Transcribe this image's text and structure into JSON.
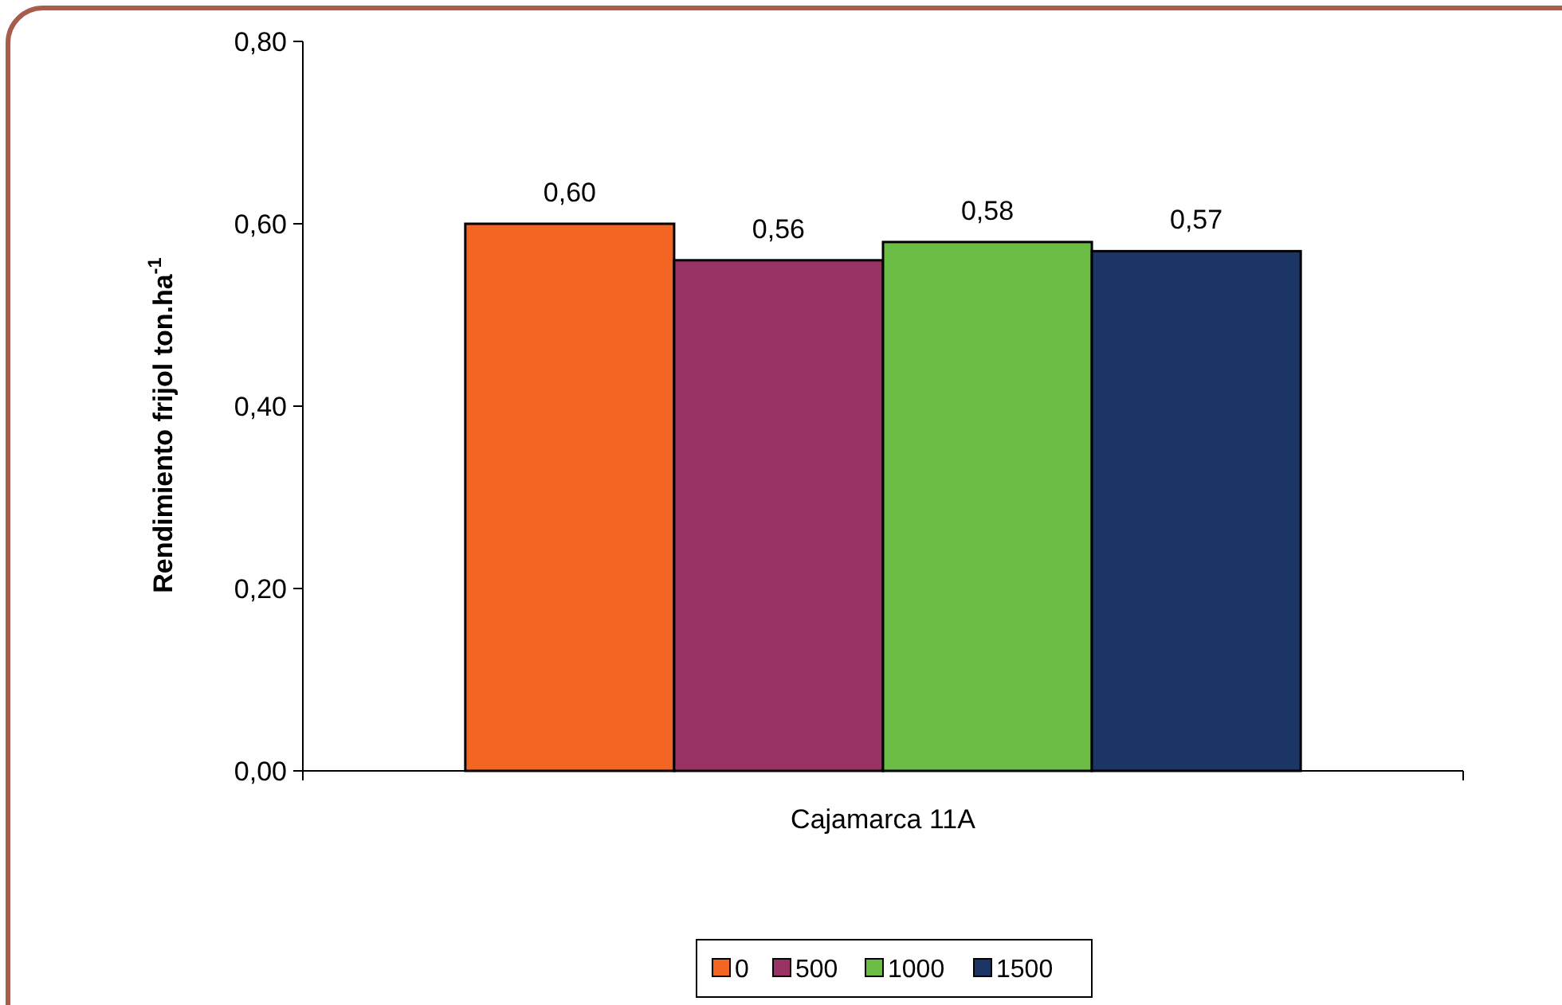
{
  "chart_data": {
    "type": "bar",
    "ylabel": "Rendimiento frijol ton.ha$^{-1}$",
    "categories": [
      "Cajamarca 11A"
    ],
    "series": [
      {
        "name": "0",
        "color": "#f26522",
        "values": [
          0.6
        ],
        "value_labels": [
          "0,60"
        ]
      },
      {
        "name": "500",
        "color": "#993366",
        "values": [
          0.56
        ],
        "value_labels": [
          "0,56"
        ]
      },
      {
        "name": "1000",
        "color": "#6cbd45",
        "values": [
          0.58
        ],
        "value_labels": [
          "0,58"
        ]
      },
      {
        "name": "1500",
        "color": "#1b3564",
        "values": [
          0.57
        ],
        "value_labels": [
          "0,57"
        ]
      }
    ],
    "ylim": [
      0,
      0.8
    ],
    "yticks": [
      {
        "value": 0,
        "label": "0,00"
      },
      {
        "value": 0.2,
        "label": "0,20"
      },
      {
        "value": 0.4,
        "label": "0,40"
      },
      {
        "value": 0.6,
        "label": "0,60"
      },
      {
        "value": 0.8,
        "label": "0,80"
      }
    ],
    "grid": false,
    "legend": "bottom"
  }
}
